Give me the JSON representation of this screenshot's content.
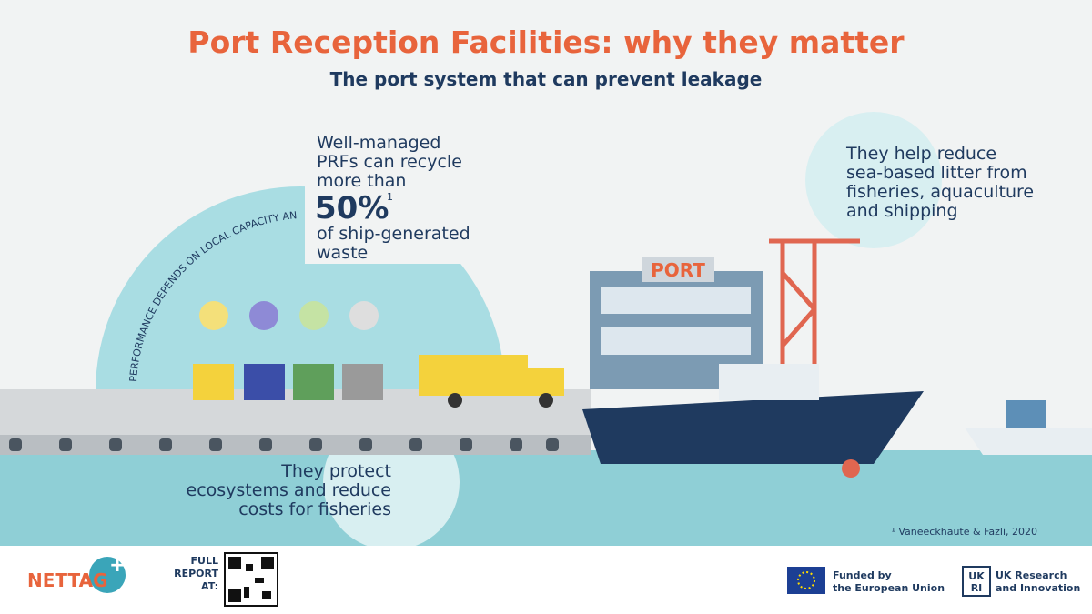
{
  "header": {
    "title": "Port Reception Facilities: why they matter",
    "subtitle": "The port system that can prevent leakage"
  },
  "callouts": {
    "recycle": {
      "lines_before": [
        "Well-managed",
        "PRFs can recycle",
        "more than"
      ],
      "highlight": "50%",
      "superscript": "1",
      "lines_after": [
        "of ship-generated",
        "waste"
      ]
    },
    "litter": {
      "lines": [
        "They help reduce",
        "sea-based litter from",
        "fisheries, aquaculture",
        "and shipping"
      ]
    },
    "ecosystems": {
      "lines": [
        "They protect",
        "ecosystems and reduce",
        "costs for fisheries"
      ]
    }
  },
  "arc_text": "PERFORMANCE DEPENDS ON LOCAL CAPACITY AND GOVERNANCE.",
  "port_sign": "PORT",
  "footnote": "¹ Vaneeckhaute & Fazli, 2020",
  "footer": {
    "logo": {
      "name": "NETTAG",
      "plus": "+"
    },
    "report": [
      "FULL",
      "REPORT",
      "AT:"
    ],
    "eu": [
      "Funded by",
      "the European Union"
    ],
    "ukri": {
      "mark": [
        "UK",
        "RI"
      ],
      "lines": [
        "UK Research",
        "and Innovation"
      ]
    }
  }
}
